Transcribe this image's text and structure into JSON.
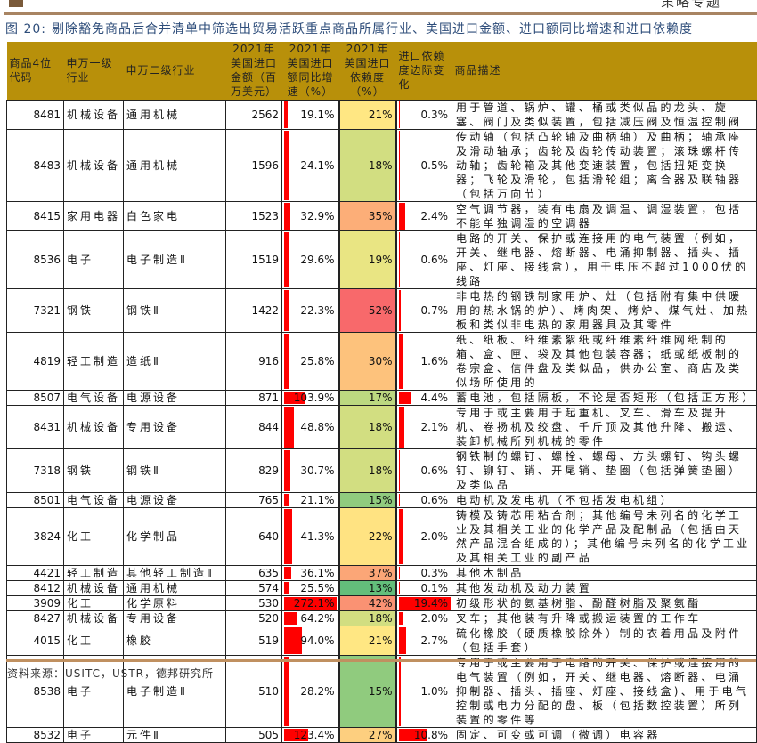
{
  "header": {
    "right_text": "策略专题"
  },
  "figure": {
    "label": "图 20:",
    "title": "剔除豁免商品后合并清单中筛选出贸易活跃重点商品所属行业、美国进口金额、进口额同比增速和进口依赖度"
  },
  "columns": [
    "商品4位代码",
    "申万一级行业",
    "申万二级行业",
    "2021年美国进口金额（百万美元）",
    "2021年美国进口额同比增速（%）",
    "2021年美国进口依赖度（%）",
    "进口依赖度边际变化",
    "商品描述"
  ],
  "colors": {
    "header_bg": "#b8900a",
    "bar": "#ff0000",
    "heat_low": "#63be7b",
    "heat_mid": "#ffeb84",
    "heat_high": "#f8696b"
  },
  "rows": [
    {
      "code": "8481",
      "sw1": "机械设备",
      "sw2": "通用机械",
      "amount": "2562",
      "growth": "19.1%",
      "growth_v": 19.1,
      "dep": "21%",
      "dep_v": 21,
      "chg": "0.3%",
      "chg_v": 0.3,
      "desc": "用于管道、锅炉、罐、桶或类似品的龙头、旋塞、阀门及类似装置，包括减压阀及恒温控制阀"
    },
    {
      "code": "8483",
      "sw1": "机械设备",
      "sw2": "通用机械",
      "amount": "1596",
      "growth": "24.1%",
      "growth_v": 24.1,
      "dep": "18%",
      "dep_v": 18,
      "chg": "0.5%",
      "chg_v": 0.5,
      "desc": "传动轴（包括凸轮轴及曲柄轴）及曲柄；轴承座及滑动轴承；齿轮及齿轮传动装置；滚珠螺杆传动轴；齿轮箱及其他变速装置，包括扭矩变换器；飞轮及滑轮，包括滑轮组；离合器及联轴器（包括万向节）"
    },
    {
      "code": "8415",
      "sw1": "家用电器",
      "sw2": "白色家电",
      "amount": "1523",
      "growth": "32.9%",
      "growth_v": 32.9,
      "dep": "35%",
      "dep_v": 35,
      "chg": "2.4%",
      "chg_v": 2.4,
      "desc": "空气调节器，装有电扇及调温、调湿装置，包括不能单独调湿的空调器"
    },
    {
      "code": "8536",
      "sw1": "电子",
      "sw2": "电子制造Ⅱ",
      "amount": "1519",
      "growth": "29.6%",
      "growth_v": 29.6,
      "dep": "19%",
      "dep_v": 19,
      "chg": "0.6%",
      "chg_v": 0.6,
      "desc": "电路的开关、保护或连接用的电气装置（例如，开关、继电器、熔断器、电涌抑制器、插头、插座、灯座、接线盒），用于电压不超过1000伏的线路"
    },
    {
      "code": "7321",
      "sw1": "钢铁",
      "sw2": "钢铁Ⅱ",
      "amount": "1422",
      "growth": "22.3%",
      "growth_v": 22.3,
      "dep": "52%",
      "dep_v": 52,
      "chg": "0.7%",
      "chg_v": 0.7,
      "desc": "非电热的钢铁制家用炉、灶（包括附有集中供暖用的热水锅的炉）、烤肉架、烤炉、煤气灶、加热板和类似非电热的家用器具及其零件"
    },
    {
      "code": "4819",
      "sw1": "轻工制造",
      "sw2": "造纸Ⅱ",
      "amount": "916",
      "growth": "25.8%",
      "growth_v": 25.8,
      "dep": "30%",
      "dep_v": 30,
      "chg": "1.6%",
      "chg_v": 1.6,
      "desc": "纸、纸板、纤维素絮纸或纤维素纤维网纸制的箱、盒、匣、袋及其他包装容器；纸或纸板制的卷宗盒、信件盘及类似品，供办公室、商店及类似场所使用的"
    },
    {
      "code": "8507",
      "sw1": "电气设备",
      "sw2": "电源设备",
      "amount": "871",
      "growth": "103.9%",
      "growth_v": 103.9,
      "dep": "17%",
      "dep_v": 17,
      "chg": "4.4%",
      "chg_v": 4.4,
      "desc": "蓄电池，包括隔板，不论是否矩形（包括正方形）"
    },
    {
      "code": "8431",
      "sw1": "机械设备",
      "sw2": "专用设备",
      "amount": "844",
      "growth": "48.8%",
      "growth_v": 48.8,
      "dep": "18%",
      "dep_v": 18,
      "chg": "2.1%",
      "chg_v": 2.1,
      "desc": "专用于或主要用于起重机、叉车、滑车及提升机、卷扬机及绞盘、千斤顶及其他升降、搬运、装卸机械所列机械的零件"
    },
    {
      "code": "7318",
      "sw1": "钢铁",
      "sw2": "钢铁Ⅱ",
      "amount": "829",
      "growth": "30.7%",
      "growth_v": 30.7,
      "dep": "18%",
      "dep_v": 18,
      "chg": "0.6%",
      "chg_v": 0.6,
      "desc": "钢铁制的螺钉、螺栓、螺母、方头螺钉、钩头螺钉、铆钉、销、开尾销、垫圈（包括弹簧垫圈）及类似品"
    },
    {
      "code": "8501",
      "sw1": "电气设备",
      "sw2": "电源设备",
      "amount": "765",
      "growth": "21.1%",
      "growth_v": 21.1,
      "dep": "15%",
      "dep_v": 15,
      "chg": "0.6%",
      "chg_v": 0.6,
      "desc": "电动机及发电机（不包括发电机组）"
    },
    {
      "code": "3824",
      "sw1": "化工",
      "sw2": "化学制品",
      "amount": "640",
      "growth": "41.3%",
      "growth_v": 41.3,
      "dep": "22%",
      "dep_v": 22,
      "chg": "2.0%",
      "chg_v": 2.0,
      "desc": "铸模及铸芯用粘合剂；其他编号未列名的化学工业及其相关工业的化学产品及配制品（包括由天然产品混合组成的）；其他编号未列名的化学工业及其相关工业的副产品"
    },
    {
      "code": "4421",
      "sw1": "轻工制造",
      "sw2": "其他轻工制造Ⅱ",
      "amount": "635",
      "growth": "36.1%",
      "growth_v": 36.1,
      "dep": "37%",
      "dep_v": 37,
      "chg": "0.3%",
      "chg_v": 0.3,
      "desc": "其他木制品"
    },
    {
      "code": "8412",
      "sw1": "机械设备",
      "sw2": "通用机械",
      "amount": "574",
      "growth": "25.5%",
      "growth_v": 25.5,
      "dep": "13%",
      "dep_v": 13,
      "chg": "0.1%",
      "chg_v": 0.1,
      "desc": "其他发动机及动力装置"
    },
    {
      "code": "3909",
      "sw1": "化工",
      "sw2": "化学原料",
      "amount": "530",
      "growth": "272.1%",
      "growth_v": 272.1,
      "dep": "42%",
      "dep_v": 42,
      "chg": "19.4%",
      "chg_v": 19.4,
      "desc": "初级形状的氨基树脂、酚醛树脂及聚氨酯"
    },
    {
      "code": "8427",
      "sw1": "机械设备",
      "sw2": "专用设备",
      "amount": "520",
      "growth": "64.2%",
      "growth_v": 64.2,
      "dep": "18%",
      "dep_v": 18,
      "chg": "2.0%",
      "chg_v": 2.0,
      "desc": "叉车；其他装有升降或搬运装置的工作车"
    },
    {
      "code": "4015",
      "sw1": "化工",
      "sw2": "橡胶",
      "amount": "519",
      "growth": "94.0%",
      "growth_v": 94.0,
      "dep": "21%",
      "dep_v": 21,
      "chg": "2.7%",
      "chg_v": 2.7,
      "desc": "硫化橡胶（硬质橡胶除外）制的衣着用品及附件（包括手套）"
    },
    {
      "code": "8538",
      "sw1": "电子",
      "sw2": "电子制造Ⅱ",
      "amount": "510",
      "growth": "28.2%",
      "growth_v": 28.2,
      "dep": "15%",
      "dep_v": 15,
      "chg": "1.0%",
      "chg_v": 1.0,
      "desc": "专用于或主要用于电路的开关、保护或连接用的电气装置（例如，开关、继电器、熔断器、电涌抑制器、插头、插座、灯座、接线盒)、用于电气控制或电力分配的盘、板（包括数控装置）所列装置的零件等"
    },
    {
      "code": "8532",
      "sw1": "电子",
      "sw2": "元件Ⅱ",
      "amount": "505",
      "growth": "123.4%",
      "growth_v": 123.4,
      "dep": "27%",
      "dep_v": 27,
      "chg": "10.8%",
      "chg_v": 10.8,
      "desc": "固定、可变或可调（微调）电容器"
    }
  ],
  "source": "资料来源：USITC，USTR，德邦研究所"
}
